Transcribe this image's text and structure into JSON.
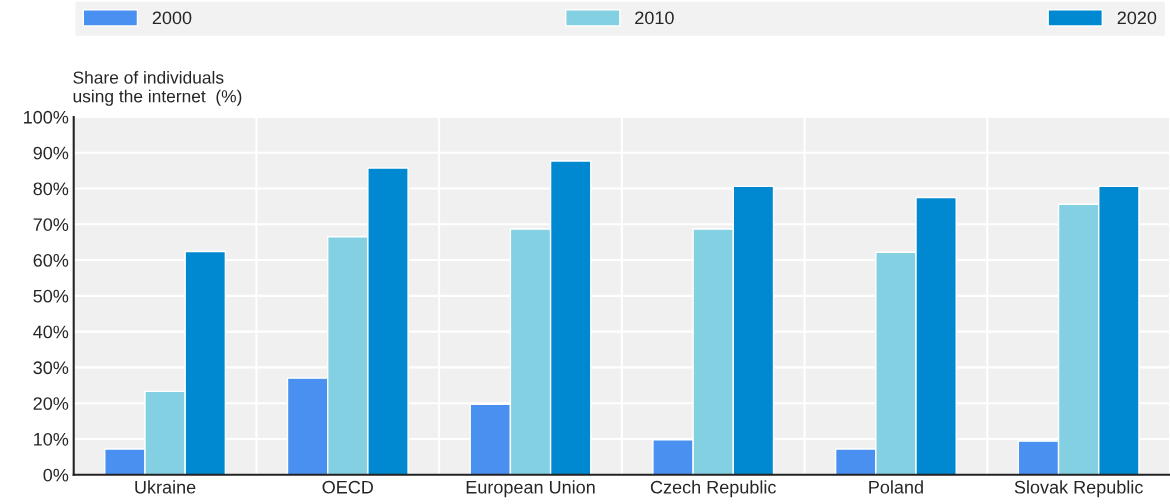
{
  "chart_data": {
    "type": "bar",
    "ylabel": "Share of individuals\nusing the internet  (%)",
    "categories": [
      "Ukraine",
      "OECD",
      "European Union",
      "Czech Republic",
      "Poland",
      "Slovak Republic"
    ],
    "series": [
      {
        "name": "2000",
        "color": "#4a90f0",
        "values": [
          7.2,
          27.0,
          19.7,
          9.8,
          7.2,
          9.4
        ]
      },
      {
        "name": "2010",
        "color": "#84d0e3",
        "values": [
          23.3,
          66.5,
          68.7,
          68.7,
          62.2,
          75.6
        ]
      },
      {
        "name": "2020",
        "color": "#0089d1",
        "values": [
          62.4,
          85.7,
          87.7,
          80.6,
          77.5,
          80.6
        ]
      }
    ],
    "ylim": [
      0,
      100
    ],
    "yticks": [
      {
        "value": 0,
        "label": "0%"
      },
      {
        "value": 10,
        "label": "10%"
      },
      {
        "value": 20,
        "label": "20%"
      },
      {
        "value": 30,
        "label": "30%"
      },
      {
        "value": 40,
        "label": "40%"
      },
      {
        "value": 50,
        "label": "50%"
      },
      {
        "value": 60,
        "label": "60%"
      },
      {
        "value": 70,
        "label": "70%"
      },
      {
        "value": 80,
        "label": "80%"
      },
      {
        "value": 90,
        "label": "90%"
      },
      {
        "value": 100,
        "label": "100%"
      }
    ],
    "grid": true,
    "legend": "top"
  }
}
